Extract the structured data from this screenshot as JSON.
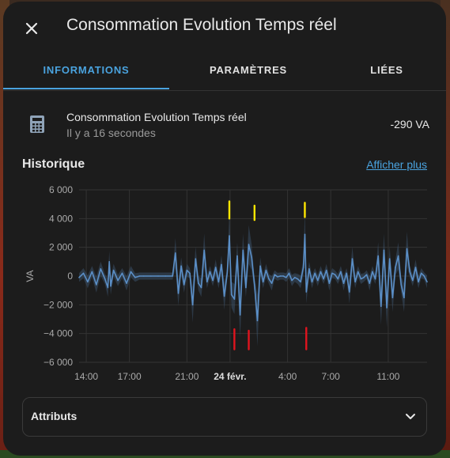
{
  "dialog": {
    "title": "Consommation Evolution Temps réel"
  },
  "tabs": [
    {
      "label": "INFORMATIONS",
      "active": true
    },
    {
      "label": "PARAMÈTRES",
      "active": false
    },
    {
      "label": "LIÉES",
      "active": false
    }
  ],
  "entity": {
    "icon": "calculator-icon",
    "name": "Consommation Evolution Temps réel",
    "last_changed": "Il y a 16 secondes",
    "value": "-290 VA"
  },
  "history": {
    "title": "Historique",
    "show_more": "Afficher plus"
  },
  "attributes": {
    "label": "Attributs"
  },
  "colors": {
    "accent": "#4aa3df",
    "line": "#5b8fc7",
    "band": "#3a5068",
    "annotation_high": "#ffe600",
    "annotation_low": "#e0141e"
  },
  "chart_data": {
    "type": "line",
    "ylabel": "VA",
    "ylim": [
      -6000,
      6000
    ],
    "yticks": [
      6000,
      4000,
      2000,
      0,
      -2000,
      -4000,
      -6000
    ],
    "ytick_labels": [
      "6 000",
      "4 000",
      "2 000",
      "0",
      "−2 000",
      "−4 000",
      "−6 000"
    ],
    "xlim": [
      13.5,
      37.7
    ],
    "xticks": [
      14,
      17,
      21,
      24,
      28,
      31,
      35
    ],
    "xtick_labels": [
      "14:00",
      "17:00",
      "21:00",
      "24 févr.",
      "4:00",
      "7:00",
      "11:00"
    ],
    "grid": true,
    "series": [
      {
        "x": [
          13.5,
          13.8,
          14.1,
          14.4,
          14.7,
          15.0,
          15.3,
          15.5,
          15.6,
          15.7,
          15.9,
          16.2,
          16.5,
          16.8,
          17.1,
          17.4,
          17.7,
          18.0,
          18.5,
          19.0,
          19.5,
          20.0,
          20.2,
          20.4,
          20.6,
          20.8,
          21.0,
          21.2,
          21.4,
          21.6,
          21.8,
          22.0,
          22.2,
          22.4,
          22.6,
          22.8,
          23.0,
          23.2,
          23.4,
          23.6,
          23.8,
          23.95,
          24.1,
          24.3,
          24.5,
          24.7,
          24.9,
          25.1,
          25.3,
          25.5,
          25.7,
          25.9,
          26.1,
          26.3,
          26.5,
          26.7,
          26.9,
          27.1,
          27.3,
          27.5,
          27.7,
          27.9,
          28.1,
          28.3,
          28.5,
          28.7,
          28.9,
          29.1,
          29.2,
          29.3,
          29.5,
          29.7,
          29.9,
          30.1,
          30.3,
          30.5,
          30.7,
          30.9,
          31.1,
          31.3,
          31.5,
          31.7,
          31.9,
          32.1,
          32.3,
          32.5,
          32.7,
          32.9,
          33.1,
          33.3,
          33.5,
          33.7,
          33.9,
          34.1,
          34.3,
          34.5,
          34.7,
          34.9,
          35.1,
          35.3,
          35.5,
          35.7,
          35.9,
          36.1,
          36.3,
          36.5,
          36.7,
          36.9,
          37.1,
          37.3,
          37.5,
          37.7
        ],
        "y": [
          -100,
          200,
          -400,
          300,
          -600,
          500,
          -200,
          -800,
          1000,
          -700,
          400,
          -300,
          200,
          -500,
          300,
          -100,
          0,
          0,
          0,
          0,
          0,
          0,
          1600,
          -1200,
          700,
          -600,
          400,
          200,
          -2000,
          1200,
          -500,
          -800,
          1800,
          -400,
          300,
          -300,
          600,
          -400,
          800,
          -1400,
          200,
          2800,
          -1300,
          -1600,
          1400,
          -2700,
          1800,
          -800,
          2200,
          1300,
          -600,
          -3100,
          700,
          -400,
          400,
          -200,
          -500,
          100,
          -50,
          0,
          0,
          -100,
          200,
          -300,
          -100,
          -200,
          -400,
          600,
          2900,
          -1100,
          500,
          -400,
          200,
          -300,
          300,
          -200,
          400,
          -500,
          200,
          100,
          -200,
          300,
          -500,
          200,
          -1100,
          1200,
          -400,
          300,
          -200,
          -100,
          100,
          -500,
          300,
          -200,
          1400,
          -2100,
          1800,
          -2200,
          1200,
          -1500,
          600,
          1400,
          -600,
          -1500,
          1900,
          300,
          -300,
          600,
          -400,
          200,
          0,
          -400
        ]
      }
    ],
    "annotations": [
      {
        "x": 23.95,
        "value_from": 4000,
        "value_to": 5200,
        "color": "yellow"
      },
      {
        "x": 25.7,
        "value_from": 3900,
        "value_to": 4900,
        "color": "yellow"
      },
      {
        "x": 29.2,
        "value_from": 4100,
        "value_to": 5100,
        "color": "yellow"
      },
      {
        "x": 24.3,
        "value_from": -3700,
        "value_to": -5100,
        "color": "red"
      },
      {
        "x": 25.3,
        "value_from": -3800,
        "value_to": -5100,
        "color": "red"
      },
      {
        "x": 29.3,
        "value_from": -3600,
        "value_to": -5100,
        "color": "red"
      }
    ]
  }
}
